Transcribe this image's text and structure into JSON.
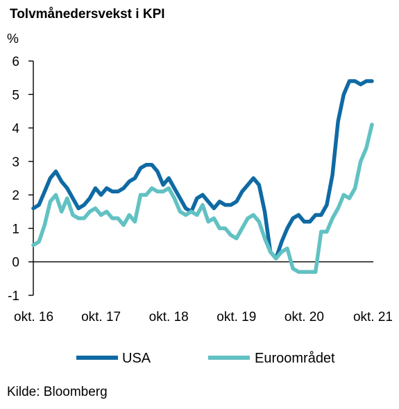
{
  "chart_data": {
    "type": "line",
    "title": "Tolvmånedersvekst i KPI",
    "ylabel": "%",
    "xlabel": "",
    "ylim": [
      -1,
      6
    ],
    "yticks": [
      -1,
      0,
      1,
      2,
      3,
      4,
      5,
      6
    ],
    "xlim": [
      "2016-10",
      "2021-10"
    ],
    "xticks": [
      {
        "at": "2016-10",
        "label": "okt. 16"
      },
      {
        "at": "2017-10",
        "label": "okt. 17"
      },
      {
        "at": "2018-10",
        "label": "okt. 18"
      },
      {
        "at": "2019-10",
        "label": "okt. 19"
      },
      {
        "at": "2020-10",
        "label": "okt. 20"
      },
      {
        "at": "2021-10",
        "label": "okt. 21"
      }
    ],
    "grid": false,
    "legend_position": "bottom",
    "source": "Kilde: Bloomberg",
    "series": [
      {
        "name": "USA",
        "color": "#0f6aa3",
        "points": [
          [
            "2016-10",
            1.6
          ],
          [
            "2016-11",
            1.7
          ],
          [
            "2016-12",
            2.1
          ],
          [
            "2017-01",
            2.5
          ],
          [
            "2017-02",
            2.7
          ],
          [
            "2017-03",
            2.4
          ],
          [
            "2017-04",
            2.2
          ],
          [
            "2017-05",
            1.9
          ],
          [
            "2017-06",
            1.6
          ],
          [
            "2017-07",
            1.7
          ],
          [
            "2017-08",
            1.9
          ],
          [
            "2017-09",
            2.2
          ],
          [
            "2017-10",
            2.0
          ],
          [
            "2017-11",
            2.2
          ],
          [
            "2017-12",
            2.1
          ],
          [
            "2018-01",
            2.1
          ],
          [
            "2018-02",
            2.2
          ],
          [
            "2018-03",
            2.4
          ],
          [
            "2018-04",
            2.5
          ],
          [
            "2018-05",
            2.8
          ],
          [
            "2018-06",
            2.9
          ],
          [
            "2018-07",
            2.9
          ],
          [
            "2018-08",
            2.7
          ],
          [
            "2018-09",
            2.3
          ],
          [
            "2018-10",
            2.5
          ],
          [
            "2018-11",
            2.2
          ],
          [
            "2018-12",
            1.9
          ],
          [
            "2019-01",
            1.6
          ],
          [
            "2019-02",
            1.5
          ],
          [
            "2019-03",
            1.9
          ],
          [
            "2019-04",
            2.0
          ],
          [
            "2019-05",
            1.8
          ],
          [
            "2019-06",
            1.6
          ],
          [
            "2019-07",
            1.8
          ],
          [
            "2019-08",
            1.7
          ],
          [
            "2019-09",
            1.7
          ],
          [
            "2019-10",
            1.8
          ],
          [
            "2019-11",
            2.1
          ],
          [
            "2019-12",
            2.3
          ],
          [
            "2020-01",
            2.5
          ],
          [
            "2020-02",
            2.3
          ],
          [
            "2020-03",
            1.5
          ],
          [
            "2020-04",
            0.3
          ],
          [
            "2020-05",
            0.1
          ],
          [
            "2020-06",
            0.6
          ],
          [
            "2020-07",
            1.0
          ],
          [
            "2020-08",
            1.3
          ],
          [
            "2020-09",
            1.4
          ],
          [
            "2020-10",
            1.2
          ],
          [
            "2020-11",
            1.2
          ],
          [
            "2020-12",
            1.4
          ],
          [
            "2021-01",
            1.4
          ],
          [
            "2021-02",
            1.7
          ],
          [
            "2021-03",
            2.6
          ],
          [
            "2021-04",
            4.2
          ],
          [
            "2021-05",
            5.0
          ],
          [
            "2021-06",
            5.4
          ],
          [
            "2021-07",
            5.4
          ],
          [
            "2021-08",
            5.3
          ],
          [
            "2021-09",
            5.4
          ],
          [
            "2021-10",
            5.4
          ]
        ]
      },
      {
        "name": "Euroområdet",
        "color": "#62c1c3",
        "points": [
          [
            "2016-10",
            0.5
          ],
          [
            "2016-11",
            0.6
          ],
          [
            "2016-12",
            1.1
          ],
          [
            "2017-01",
            1.8
          ],
          [
            "2017-02",
            2.0
          ],
          [
            "2017-03",
            1.5
          ],
          [
            "2017-04",
            1.9
          ],
          [
            "2017-05",
            1.4
          ],
          [
            "2017-06",
            1.3
          ],
          [
            "2017-07",
            1.3
          ],
          [
            "2017-08",
            1.5
          ],
          [
            "2017-09",
            1.6
          ],
          [
            "2017-10",
            1.4
          ],
          [
            "2017-11",
            1.5
          ],
          [
            "2017-12",
            1.3
          ],
          [
            "2018-01",
            1.3
          ],
          [
            "2018-02",
            1.1
          ],
          [
            "2018-03",
            1.4
          ],
          [
            "2018-04",
            1.2
          ],
          [
            "2018-05",
            2.0
          ],
          [
            "2018-06",
            2.0
          ],
          [
            "2018-07",
            2.2
          ],
          [
            "2018-08",
            2.1
          ],
          [
            "2018-09",
            2.1
          ],
          [
            "2018-10",
            2.2
          ],
          [
            "2018-11",
            1.9
          ],
          [
            "2018-12",
            1.5
          ],
          [
            "2019-01",
            1.4
          ],
          [
            "2019-02",
            1.5
          ],
          [
            "2019-03",
            1.4
          ],
          [
            "2019-04",
            1.7
          ],
          [
            "2019-05",
            1.2
          ],
          [
            "2019-06",
            1.3
          ],
          [
            "2019-07",
            1.0
          ],
          [
            "2019-08",
            1.0
          ],
          [
            "2019-09",
            0.8
          ],
          [
            "2019-10",
            0.7
          ],
          [
            "2019-11",
            1.0
          ],
          [
            "2019-12",
            1.3
          ],
          [
            "2020-01",
            1.4
          ],
          [
            "2020-02",
            1.2
          ],
          [
            "2020-03",
            0.7
          ],
          [
            "2020-04",
            0.3
          ],
          [
            "2020-05",
            0.1
          ],
          [
            "2020-06",
            0.3
          ],
          [
            "2020-07",
            0.4
          ],
          [
            "2020-08",
            -0.2
          ],
          [
            "2020-09",
            -0.3
          ],
          [
            "2020-10",
            -0.3
          ],
          [
            "2020-11",
            -0.3
          ],
          [
            "2020-12",
            -0.3
          ],
          [
            "2021-01",
            0.9
          ],
          [
            "2021-02",
            0.9
          ],
          [
            "2021-03",
            1.3
          ],
          [
            "2021-04",
            1.6
          ],
          [
            "2021-05",
            2.0
          ],
          [
            "2021-06",
            1.9
          ],
          [
            "2021-07",
            2.2
          ],
          [
            "2021-08",
            3.0
          ],
          [
            "2021-09",
            3.4
          ],
          [
            "2021-10",
            4.1
          ]
        ]
      }
    ]
  }
}
